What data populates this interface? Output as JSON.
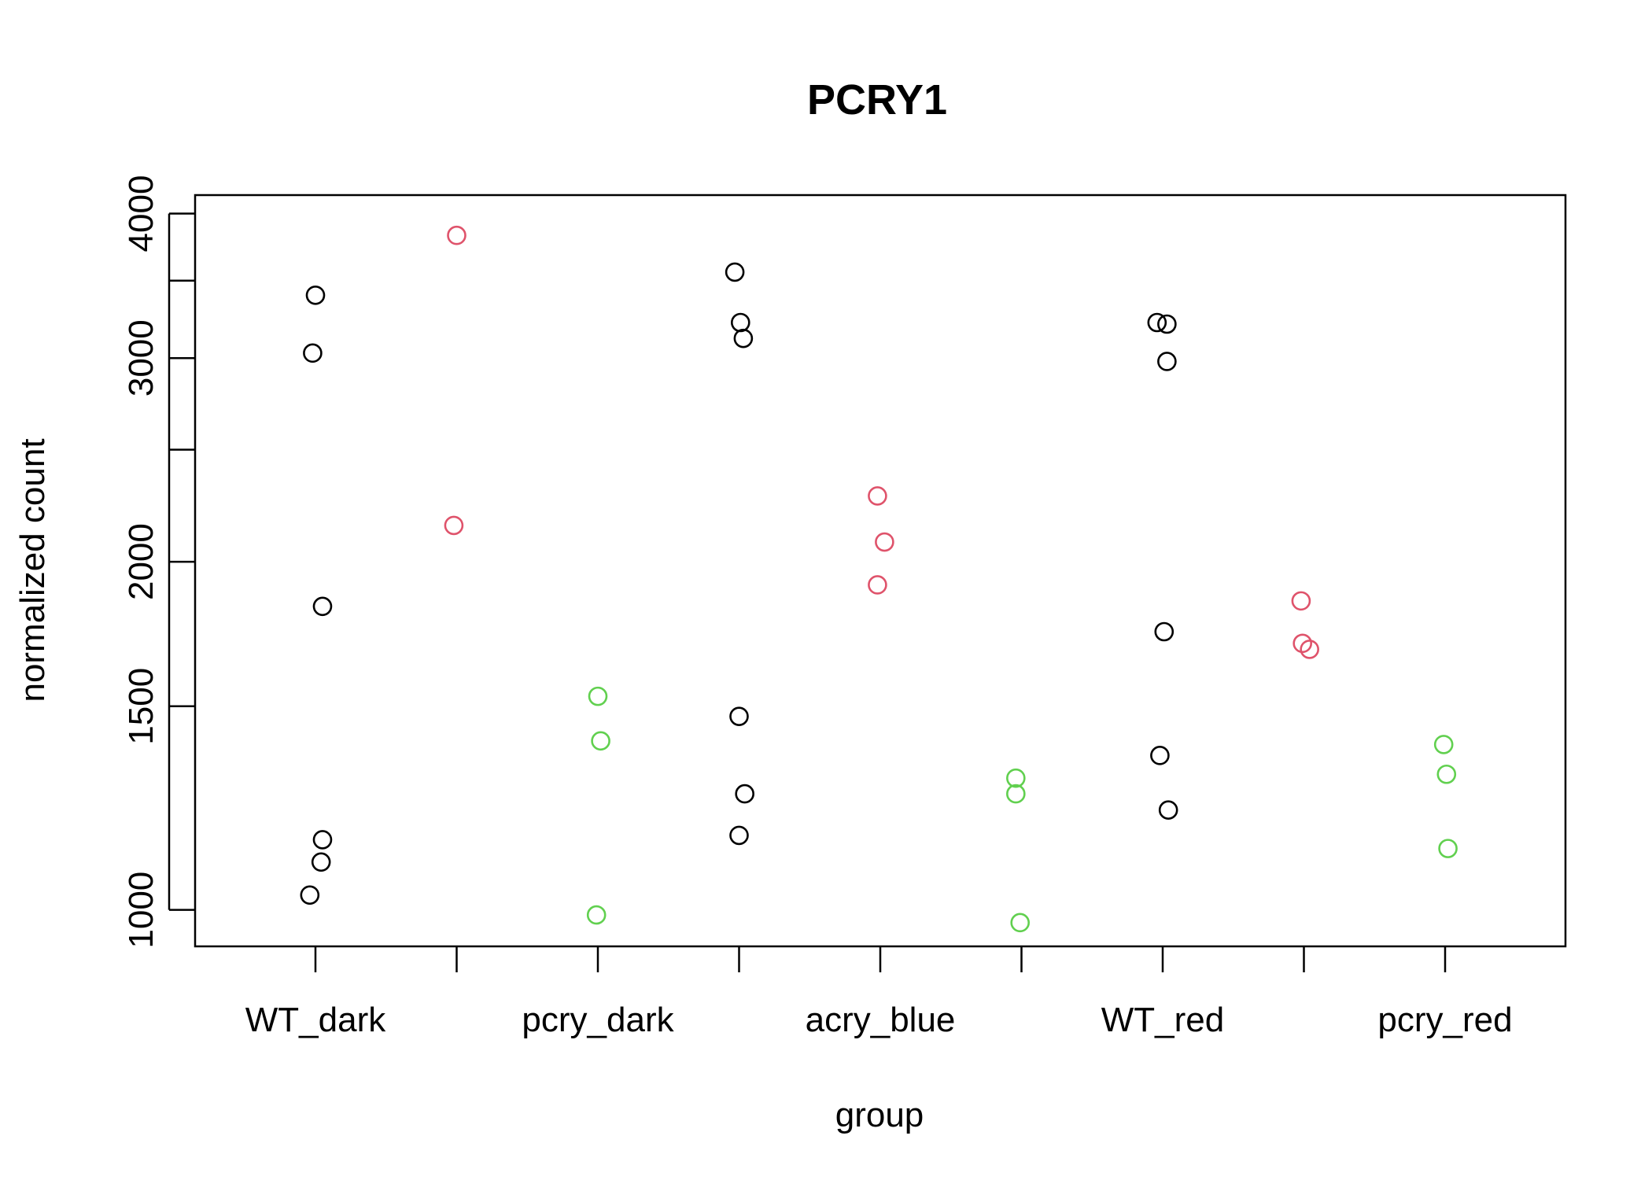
{
  "chart_data": {
    "type": "scatter",
    "title": "PCRY1",
    "xlabel": "group",
    "ylabel": "normalized count",
    "y_scale": "log",
    "ylim": [
      930,
      4150
    ],
    "y_ticks": [
      1000,
      1500,
      2000,
      3000,
      4000
    ],
    "y_tick_labels": [
      "1000",
      "1500",
      "2000",
      "3000",
      "4000"
    ],
    "y_minor_ticks": [
      2500,
      3500
    ],
    "categories": [
      "WT_dark",
      "pcry_dark_hidden_a",
      "pcry_dark",
      "acry_blue_hidden_a",
      "acry_blue",
      "acry_blue_hidden_b",
      "WT_red",
      "WT_red_hidden_b",
      "pcry_red"
    ],
    "category_labels": [
      "WT_dark",
      "",
      "pcry_dark",
      "",
      "acry_blue",
      "",
      "WT_red",
      "",
      "pcry_red"
    ],
    "colors": {
      "black": "#000000",
      "red": "#df536b",
      "green": "#61d04f"
    },
    "series": [
      {
        "category_index": 0,
        "color": "black",
        "values": [
          3400,
          3030,
          1830,
          1150,
          1100,
          1030
        ]
      },
      {
        "category_index": 1,
        "color": "red",
        "values": [
          3830,
          2150
        ]
      },
      {
        "category_index": 2,
        "color": "green",
        "values": [
          1530,
          1400,
          990
        ]
      },
      {
        "category_index": 3,
        "color": "black",
        "values": [
          3560,
          3220,
          3120,
          1470,
          1260,
          1160
        ]
      },
      {
        "category_index": 4,
        "color": "red",
        "values": [
          2280,
          2080,
          1910
        ]
      },
      {
        "category_index": 5,
        "color": "green",
        "values": [
          1300,
          1260,
          975
        ]
      },
      {
        "category_index": 6,
        "color": "black",
        "values": [
          3220,
          3210,
          2980,
          1740,
          1360,
          1220
        ]
      },
      {
        "category_index": 7,
        "color": "red",
        "values": [
          1850,
          1700,
          1680
        ]
      },
      {
        "category_index": 8,
        "color": "green",
        "values": [
          1390,
          1310,
          1130
        ]
      }
    ],
    "jitter": [
      [
        0.0,
        -0.02,
        0.05,
        0.05,
        0.04,
        -0.04
      ],
      [
        0.0,
        -0.02
      ],
      [
        0.0,
        0.02,
        -0.01
      ],
      [
        -0.03,
        0.01,
        0.03,
        0.0,
        0.04,
        0.0
      ],
      [
        -0.02,
        0.03,
        -0.02
      ],
      [
        -0.04,
        -0.04,
        -0.01
      ],
      [
        -0.04,
        0.03,
        0.03,
        0.01,
        -0.02,
        0.04
      ],
      [
        -0.02,
        -0.01,
        0.04
      ],
      [
        -0.01,
        0.01,
        0.02
      ]
    ],
    "grid": false,
    "legend": "none"
  }
}
